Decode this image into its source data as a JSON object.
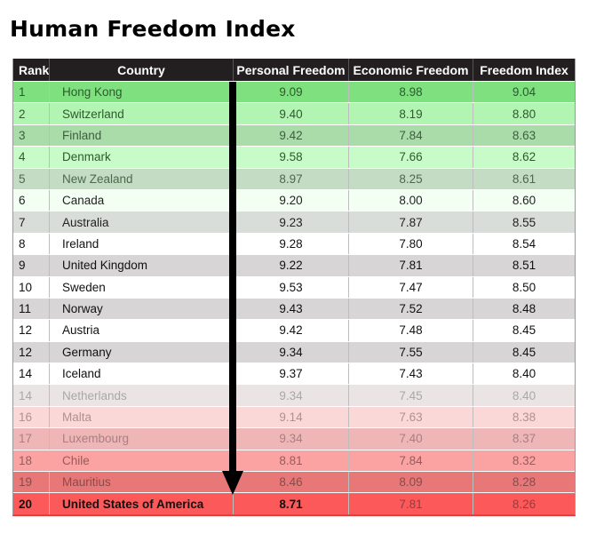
{
  "title": "Human Freedom Index",
  "chart_data": {
    "type": "table",
    "title": "Human Freedom Index",
    "columns": [
      "Rank",
      "Country",
      "Personal Freedom",
      "Economic Freedom",
      "Freedom Index"
    ],
    "rows": [
      {
        "rank": "1",
        "country": "Hong Kong",
        "personal": "9.09",
        "economic": "8.98",
        "index": "9.04",
        "bg": "#7ee07e",
        "fg": "#2e5a2e"
      },
      {
        "rank": "2",
        "country": "Switzerland",
        "personal": "9.40",
        "economic": "8.19",
        "index": "8.80",
        "bg": "#b2f5b2",
        "fg": "#2e5a2e"
      },
      {
        "rank": "3",
        "country": "Finland",
        "personal": "9.42",
        "economic": "7.84",
        "index": "8.63",
        "bg": "#a9dca9",
        "fg": "#3e5e3e"
      },
      {
        "rank": "4",
        "country": "Denmark",
        "personal": "9.58",
        "economic": "7.66",
        "index": "8.62",
        "bg": "#c7fbc7",
        "fg": "#2e5a2e"
      },
      {
        "rank": "5",
        "country": "New Zealand",
        "personal": "8.97",
        "economic": "8.25",
        "index": "8.61",
        "bg": "#c3dcc3",
        "fg": "#4a6a4a"
      },
      {
        "rank": "6",
        "country": "Canada",
        "personal": "9.20",
        "economic": "8.00",
        "index": "8.60",
        "bg": "#f4fff4",
        "fg": "#222222"
      },
      {
        "rank": "7",
        "country": "Australia",
        "personal": "9.23",
        "economic": "7.87",
        "index": "8.55",
        "bg": "#d9ddd9",
        "fg": "#222222"
      },
      {
        "rank": "8",
        "country": "Ireland",
        "personal": "9.28",
        "economic": "7.80",
        "index": "8.54",
        "bg": "#ffffff",
        "fg": "#111111"
      },
      {
        "rank": "9",
        "country": "United Kingdom",
        "personal": "9.22",
        "economic": "7.81",
        "index": "8.51",
        "bg": "#d7d5d5",
        "fg": "#111111"
      },
      {
        "rank": "10",
        "country": "Sweden",
        "personal": "9.53",
        "economic": "7.47",
        "index": "8.50",
        "bg": "#ffffff",
        "fg": "#111111"
      },
      {
        "rank": "11",
        "country": "Norway",
        "personal": "9.43",
        "economic": "7.52",
        "index": "8.48",
        "bg": "#d7d5d5",
        "fg": "#111111"
      },
      {
        "rank": "12",
        "country": "Austria",
        "personal": "9.42",
        "economic": "7.48",
        "index": "8.45",
        "bg": "#ffffff",
        "fg": "#111111"
      },
      {
        "rank": "12",
        "country": "Germany",
        "personal": "9.34",
        "economic": "7.55",
        "index": "8.45",
        "bg": "#d7d5d5",
        "fg": "#111111"
      },
      {
        "rank": "14",
        "country": "Iceland",
        "personal": "9.37",
        "economic": "7.43",
        "index": "8.40",
        "bg": "#ffffff",
        "fg": "#111111"
      },
      {
        "rank": "14",
        "country": "Netherlands",
        "personal": "9.34",
        "economic": "7.45",
        "index": "8.40",
        "bg": "#ebe4e4",
        "fg": "#a8a8a8"
      },
      {
        "rank": "16",
        "country": "Malta",
        "personal": "9.14",
        "economic": "7.63",
        "index": "8.38",
        "bg": "#fbd8d8",
        "fg": "#b09090"
      },
      {
        "rank": "17",
        "country": "Luxembourg",
        "personal": "9.34",
        "economic": "7.40",
        "index": "8.37",
        "bg": "#eeb6b6",
        "fg": "#a88080"
      },
      {
        "rank": "18",
        "country": "Chile",
        "personal": "8.81",
        "economic": "7.84",
        "index": "8.32",
        "bg": "#fba3a3",
        "fg": "#9a5a5a"
      },
      {
        "rank": "19",
        "country": "Mauritius",
        "personal": "8.46",
        "economic": "8.09",
        "index": "8.28",
        "bg": "#e87878",
        "fg": "#8a4a4a"
      },
      {
        "rank": "20",
        "country": "United States of America",
        "personal": "8.71",
        "economic": "7.81",
        "index": "8.26",
        "bg": "#fc5a5a",
        "fg": "#111111",
        "bold": true
      }
    ]
  }
}
